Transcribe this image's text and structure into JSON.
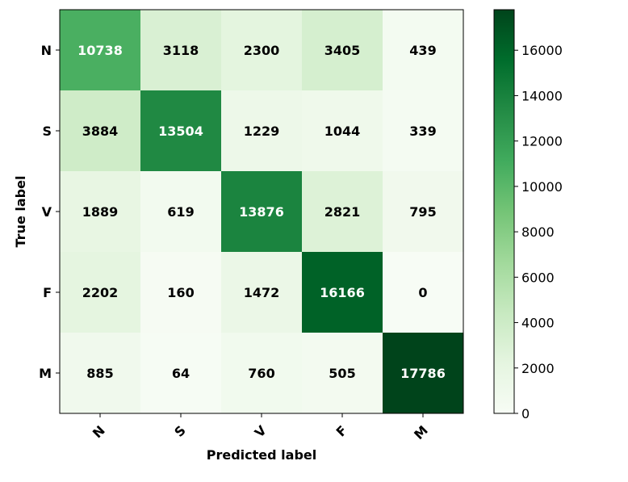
{
  "chart_data": {
    "type": "heatmap",
    "title": "",
    "xlabel": "Predicted label",
    "ylabel": "True label",
    "x_categories": [
      "N",
      "S",
      "V",
      "F",
      "M"
    ],
    "y_categories": [
      "N",
      "S",
      "V",
      "F",
      "M"
    ],
    "values": [
      [
        10738,
        3118,
        2300,
        3405,
        439
      ],
      [
        3884,
        13504,
        1229,
        1044,
        339
      ],
      [
        1889,
        619,
        13876,
        2821,
        795
      ],
      [
        2202,
        160,
        1472,
        16166,
        0
      ],
      [
        885,
        64,
        760,
        505,
        17786
      ]
    ],
    "colormap": "Greens",
    "colormap_stops": [
      "#f7fcf5",
      "#e5f5e0",
      "#c7e9c0",
      "#a1d99b",
      "#74c476",
      "#41ab5d",
      "#238b45",
      "#006d2c",
      "#00441b"
    ],
    "colorbar": {
      "min": 0,
      "max": 17786,
      "ticks": [
        0,
        2000,
        4000,
        6000,
        8000,
        10000,
        12000,
        14000,
        16000
      ]
    },
    "text_color_dark": "#000000",
    "text_color_light": "#ffffff",
    "text_threshold": 8893
  }
}
